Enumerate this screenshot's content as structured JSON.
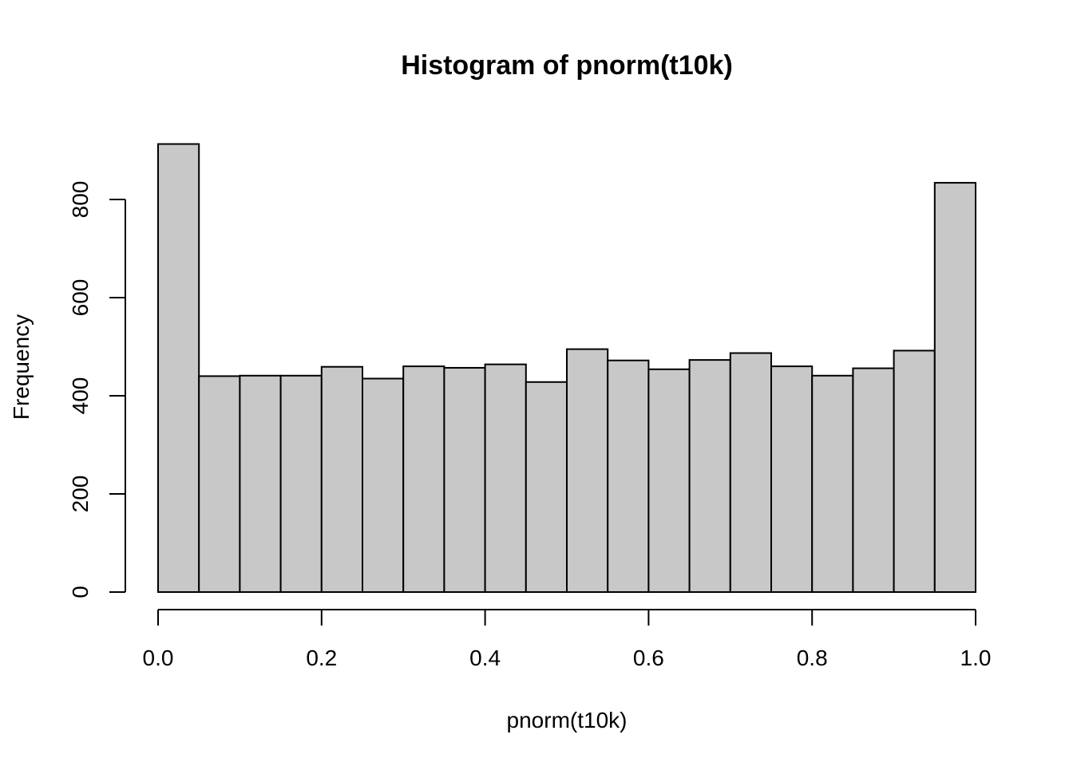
{
  "chart_data": {
    "type": "bar",
    "title": "Histogram of pnorm(t10k)",
    "xlabel": "pnorm(t10k)",
    "ylabel": "Frequency",
    "bin_edges": [
      0.0,
      0.05,
      0.1,
      0.15,
      0.2,
      0.25,
      0.3,
      0.35,
      0.4,
      0.45,
      0.5,
      0.55,
      0.6,
      0.65,
      0.7,
      0.75,
      0.8,
      0.85,
      0.9,
      0.95,
      1.0
    ],
    "values": [
      913,
      440,
      441,
      441,
      459,
      435,
      460,
      457,
      464,
      428,
      495,
      472,
      454,
      473,
      487,
      460,
      441,
      456,
      492,
      834
    ],
    "xlim": [
      0,
      1
    ],
    "ylim": [
      0,
      913
    ],
    "x_ticks": [
      0.0,
      0.2,
      0.4,
      0.6,
      0.8,
      1.0
    ],
    "x_tick_labels": [
      "0.0",
      "0.2",
      "0.4",
      "0.6",
      "0.8",
      "1.0"
    ],
    "y_ticks": [
      0,
      200,
      400,
      600,
      800
    ],
    "y_tick_labels": [
      "0",
      "200",
      "400",
      "600",
      "800"
    ],
    "bar_color": "#c8c8c8",
    "edge_color": "#000000",
    "grid": false,
    "legend": "none"
  }
}
